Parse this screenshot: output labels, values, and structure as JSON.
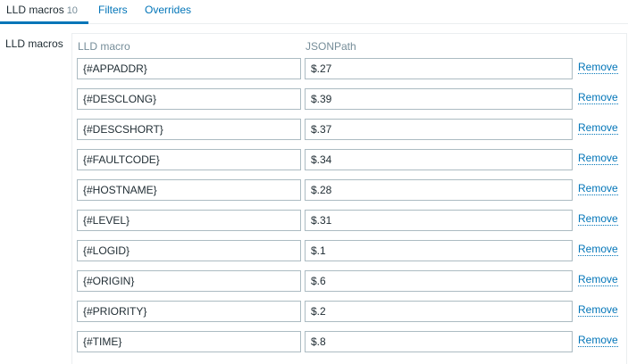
{
  "tabs": [
    {
      "label": "LLD macros",
      "count": "10"
    },
    {
      "label": "Filters"
    },
    {
      "label": "Overrides"
    }
  ],
  "section_label": "LLD macros",
  "headers": {
    "macro": "LLD macro",
    "path": "JSONPath"
  },
  "remove_label": "Remove",
  "rows": [
    {
      "macro": "{#APPADDR}",
      "path": "$.27"
    },
    {
      "macro": "{#DESCLONG}",
      "path": "$.39"
    },
    {
      "macro": "{#DESCSHORT}",
      "path": "$.37"
    },
    {
      "macro": "{#FAULTCODE}",
      "path": "$.34"
    },
    {
      "macro": "{#HOSTNAME}",
      "path": "$.28"
    },
    {
      "macro": "{#LEVEL}",
      "path": "$.31"
    },
    {
      "macro": "{#LOGID}",
      "path": "$.1"
    },
    {
      "macro": "{#ORIGIN}",
      "path": "$.6"
    },
    {
      "macro": "{#PRIORITY}",
      "path": "$.2"
    },
    {
      "macro": "{#TIME}",
      "path": "$.8"
    }
  ]
}
